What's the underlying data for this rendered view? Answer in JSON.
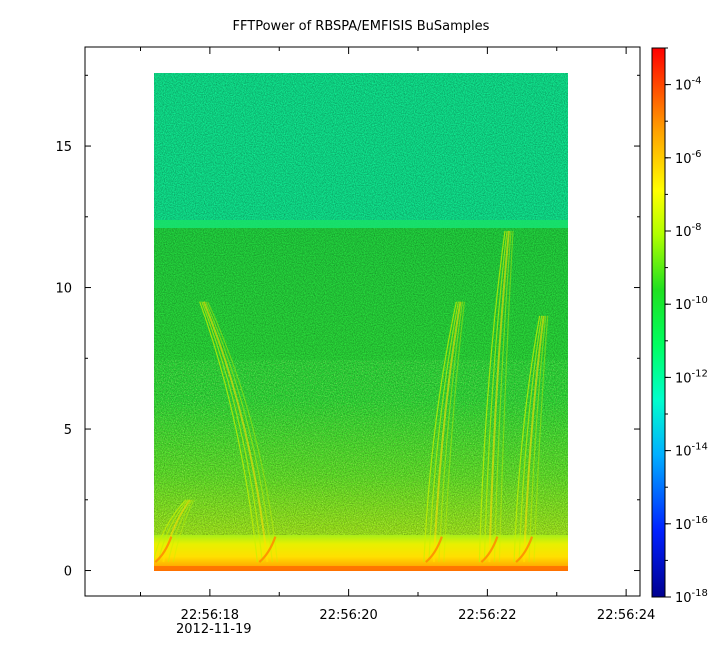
{
  "chart_data": {
    "type": "heatmap",
    "title": "FFTPower of RBSPA/EMFISIS  BuSamples",
    "xlabel": "",
    "ylabel": "",
    "x_axis": {
      "tick_labels": [
        "22:56:18",
        "22:56:20",
        "22:56:22",
        "22:56:24"
      ],
      "date_label": "2012-11-19",
      "minor_ticks_between": 1,
      "xlim": [
        "22:56:16.2",
        "22:56:24.2"
      ],
      "data_range": [
        "22:56:17.3",
        "22:56:23.3"
      ]
    },
    "y_axis": {
      "tick_labels": [
        "0",
        "5",
        "10",
        "15"
      ],
      "tick_values": [
        0,
        5,
        10,
        15
      ],
      "ylim": [
        -0.9,
        18.5
      ],
      "data_range": [
        0,
        17.5
      ]
    },
    "colorbar": {
      "scale": "log",
      "range": [
        1e-18,
        0.001
      ],
      "tick_exponents": [
        "-4",
        "-6",
        "-8",
        "-10",
        "-12",
        "-14",
        "-16",
        "-18"
      ],
      "tick_base": "10",
      "colormap": "rainbow (blue-cyan-green-yellow-red)"
    },
    "features": {
      "upper_band_power": "~1e-13 above 12 (teal-green)",
      "lower_band_power": "~1e-11 below 12 (green)",
      "low_freq_power": "~1e-8 to 1e-6 below 1 (yellow to red)",
      "rising_tones": [
        {
          "t_start": "22:56:17.3",
          "t_end": "22:56:17.7",
          "f_max": 2.5
        },
        {
          "t_start": "22:56:18.8",
          "t_end": "22:56:17.9",
          "f_max": 9.5
        },
        {
          "t_start": "22:56:21.2",
          "t_end": "22:56:21.6",
          "f_max": 9.5
        },
        {
          "t_start": "22:56:22.0",
          "t_end": "22:56:22.3",
          "f_max": 12
        },
        {
          "t_start": "22:56:22.5",
          "t_end": "22:56:22.8",
          "f_max": 9
        }
      ]
    }
  }
}
